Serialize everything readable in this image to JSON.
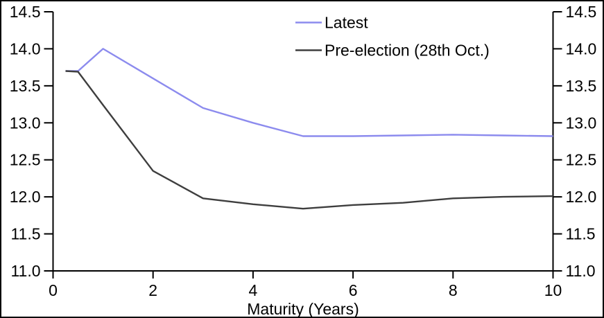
{
  "chart_data": {
    "type": "line",
    "title": "",
    "xlabel": "Maturity (Years)",
    "ylabel": "",
    "xlim": [
      0,
      10
    ],
    "ylim": [
      11.0,
      14.5
    ],
    "x_ticks": [
      0,
      2,
      4,
      6,
      8,
      10
    ],
    "y_ticks": [
      11.0,
      11.5,
      12.0,
      12.5,
      13.0,
      13.5,
      14.0,
      14.5
    ],
    "y_tick_labels": [
      "11.0",
      "11.5",
      "12.0",
      "12.5",
      "13.0",
      "13.5",
      "14.0",
      "14.5"
    ],
    "dual_y_axis": true,
    "grid": false,
    "legend_position": "top-center",
    "x": [
      0.25,
      0.5,
      1,
      2,
      3,
      4,
      5,
      6,
      7,
      8,
      9,
      10
    ],
    "series": [
      {
        "name": "Latest",
        "color": "#8c8bee",
        "values": [
          13.7,
          13.7,
          14.0,
          13.6,
          13.2,
          13.0,
          12.82,
          12.82,
          12.83,
          12.84,
          12.83,
          12.82
        ]
      },
      {
        "name": "Pre-election (28th Oct.)",
        "color": "#3e3e3e",
        "values": [
          13.7,
          13.69,
          13.24,
          12.35,
          11.98,
          11.9,
          11.84,
          11.89,
          11.92,
          11.98,
          12.0,
          12.01
        ]
      }
    ]
  }
}
